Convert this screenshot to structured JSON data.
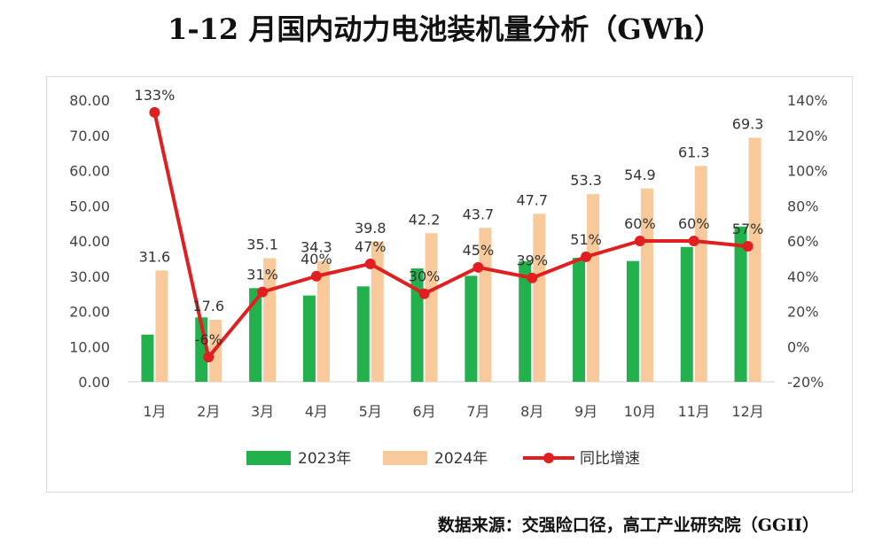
{
  "title": "1-12 月国内动力电池装机量分析（GWh）",
  "source": "数据来源：交强险口径，高工产业研究院（GGII）",
  "colors": {
    "s2023": "#22b14c",
    "s2024": "#f8c99a",
    "growth": "#e02020"
  },
  "chart_data": {
    "type": "bar",
    "categories": [
      "1月",
      "2月",
      "3月",
      "4月",
      "5月",
      "6月",
      "7月",
      "8月",
      "9月",
      "10月",
      "11月",
      "12月"
    ],
    "series": [
      {
        "name": "2023年",
        "type": "bar",
        "axis": "left",
        "values": [
          13.4,
          18.3,
          26.6,
          24.5,
          27.1,
          32.2,
          30.1,
          34.2,
          35.2,
          34.3,
          38.3,
          44.1
        ]
      },
      {
        "name": "2024年",
        "type": "bar",
        "axis": "left",
        "values": [
          31.6,
          17.6,
          35.1,
          34.3,
          39.8,
          42.2,
          43.7,
          47.7,
          53.3,
          54.9,
          61.3,
          69.3
        ],
        "data_labels": [
          "31.6",
          "17.6",
          "35.1",
          "34.3",
          "39.8",
          "42.2",
          "43.7",
          "47.7",
          "53.3",
          "54.9",
          "61.3",
          "69.3"
        ]
      },
      {
        "name": "同比增速",
        "type": "line",
        "axis": "right",
        "values": [
          133,
          -6,
          31,
          40,
          47,
          30,
          45,
          39,
          51,
          60,
          60,
          57
        ],
        "data_labels": [
          "133%",
          "-6%",
          "31%",
          "40%",
          "47%",
          "30%",
          "45%",
          "39%",
          "51%",
          "60%",
          "60%",
          "57%"
        ]
      }
    ],
    "y_left": {
      "range": [
        0,
        80
      ],
      "ticks": [
        "0.00",
        "10.00",
        "20.00",
        "30.00",
        "40.00",
        "50.00",
        "60.00",
        "70.00",
        "80.00"
      ]
    },
    "y_right": {
      "range": [
        -20,
        140
      ],
      "ticks": [
        "-20%",
        "0%",
        "20%",
        "40%",
        "60%",
        "80%",
        "100%",
        "120%",
        "140%"
      ]
    },
    "grid": false,
    "legend": "bottom"
  }
}
